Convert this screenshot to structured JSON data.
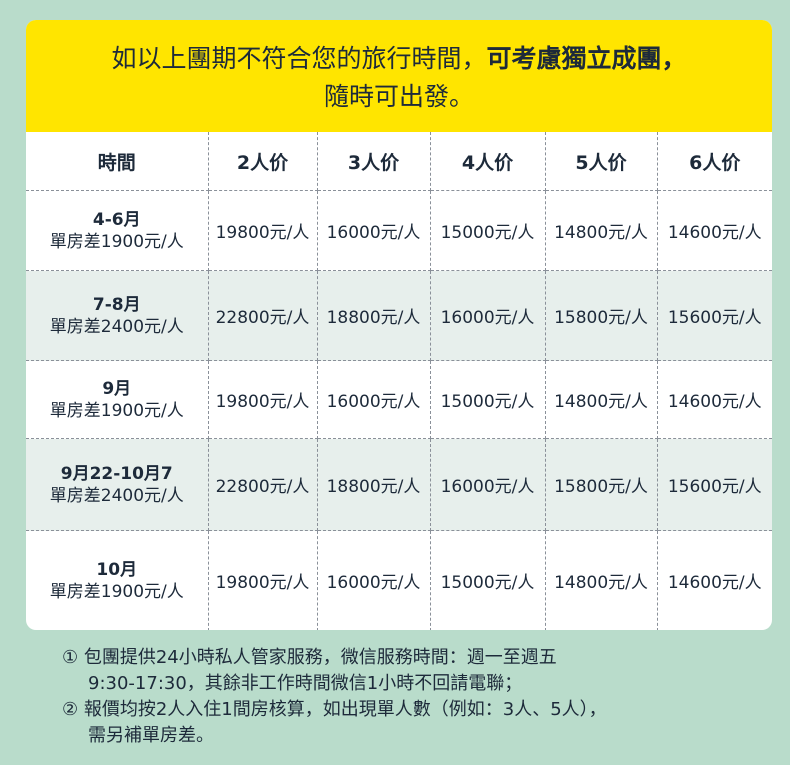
{
  "banner": {
    "line1_normal": "如以上團期不符合您的旅行時間，",
    "line1_bold": "可考慮獨立成團，",
    "line2": "隨時可出發。"
  },
  "table": {
    "headers": [
      "時間",
      "2人价",
      "3人价",
      "4人价",
      "5人价",
      "6人价"
    ],
    "rows": [
      {
        "period": "4-6月",
        "diff": "單房差1900元/人",
        "prices": [
          "19800元/人",
          "16000元/人",
          "15000元/人",
          "14800元/人",
          "14600元/人"
        ]
      },
      {
        "period": "7-8月",
        "diff": "單房差2400元/人",
        "prices": [
          "22800元/人",
          "18800元/人",
          "16000元/人",
          "15800元/人",
          "15600元/人"
        ]
      },
      {
        "period": "9月",
        "diff": "單房差1900元/人",
        "prices": [
          "19800元/人",
          "16000元/人",
          "15000元/人",
          "14800元/人",
          "14600元/人"
        ]
      },
      {
        "period": "9月22-10月7",
        "diff": "單房差2400元/人",
        "prices": [
          "22800元/人",
          "18800元/人",
          "16000元/人",
          "15800元/人",
          "15600元/人"
        ]
      },
      {
        "period": "10月",
        "diff": "單房差1900元/人",
        "prices": [
          "19800元/人",
          "16000元/人",
          "15000元/人",
          "14800元/人",
          "14600元/人"
        ]
      }
    ]
  },
  "notes": [
    {
      "line1": "① 包團提供24小時私人管家服務，微信服務時間：週一至週五",
      "line2": "9:30-17:30，其餘非工作時間微信1小時不回請電聯；"
    },
    {
      "line1": "② 報價均按2人入住1間房核算，如出現單人數（例如：3人、5人），",
      "line2": "需另補單房差。"
    }
  ],
  "colors": {
    "banner": "#ffe500",
    "background": "#b9dccb",
    "alt_row": "#e7efec",
    "text": "#1d2a3a"
  }
}
